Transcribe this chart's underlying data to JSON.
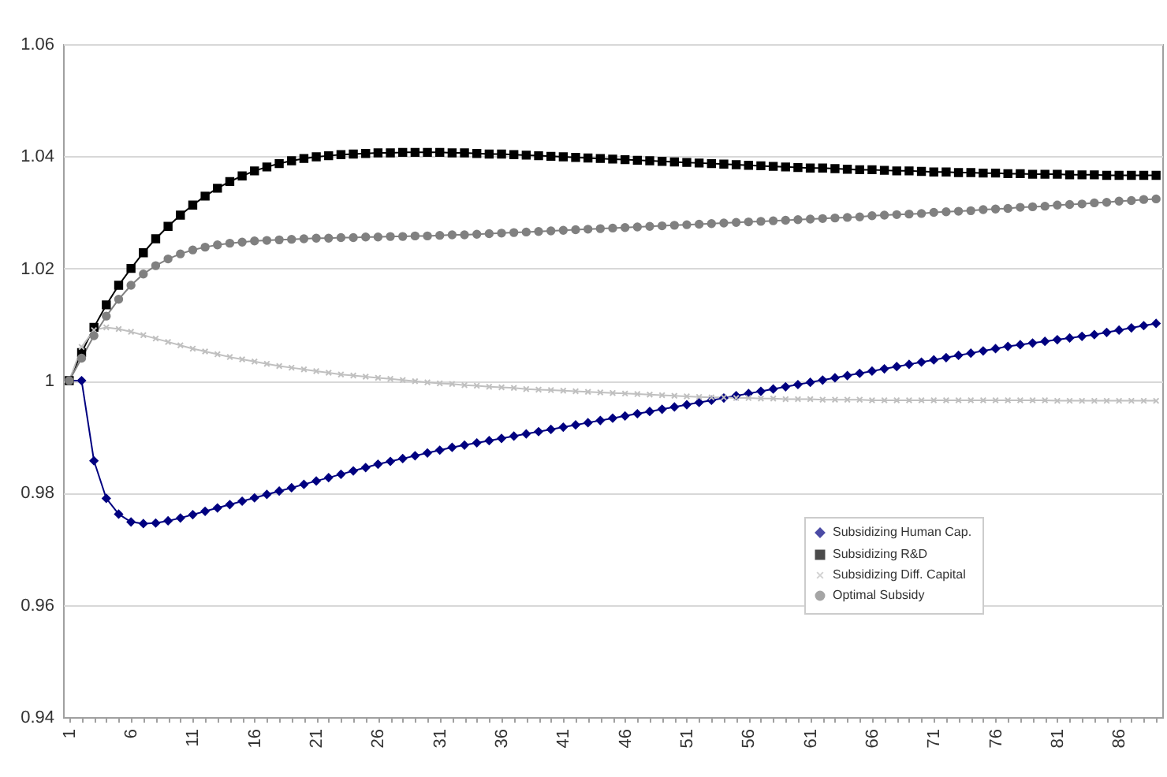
{
  "chart_data": {
    "type": "line",
    "categories": [
      "1",
      null,
      null,
      null,
      null,
      "6",
      null,
      null,
      null,
      null,
      "11",
      null,
      null,
      null,
      null,
      "16",
      null,
      null,
      null,
      null,
      "21",
      null,
      null,
      null,
      null,
      "26",
      null,
      null,
      null,
      null,
      "31",
      null,
      null,
      null,
      null,
      "36",
      null,
      null,
      null,
      null,
      "41",
      null,
      null,
      null,
      null,
      "46",
      null,
      null,
      null,
      null,
      "51",
      null,
      null,
      null,
      null,
      "56",
      null,
      null,
      null,
      null,
      "61",
      null,
      null,
      null,
      null,
      "66",
      null,
      null,
      null,
      null,
      "71",
      null,
      null,
      null,
      null,
      "76",
      null,
      null,
      null,
      null,
      "81",
      null,
      null,
      null,
      null,
      "86",
      null,
      null,
      null
    ],
    "series": [
      {
        "name": "Subsidizing Human Cap.",
        "color": "#000080",
        "marker": "diamond",
        "values": [
          1.0,
          1.0,
          0.9857,
          0.979,
          0.9762,
          0.9748,
          0.9745,
          0.9746,
          0.975,
          0.9755,
          0.9761,
          0.9767,
          0.9773,
          0.9779,
          0.9785,
          0.9791,
          0.9797,
          0.9803,
          0.9809,
          0.9815,
          0.9821,
          0.9827,
          0.9833,
          0.9839,
          0.9845,
          0.9851,
          0.9856,
          0.9861,
          0.9866,
          0.9871,
          0.9876,
          0.9881,
          0.9885,
          0.9889,
          0.9893,
          0.9897,
          0.9901,
          0.9905,
          0.9909,
          0.9913,
          0.9917,
          0.9921,
          0.9925,
          0.9929,
          0.9933,
          0.9937,
          0.9941,
          0.9945,
          0.9949,
          0.9953,
          0.9957,
          0.9961,
          0.9965,
          0.9969,
          0.9973,
          0.9977,
          0.9981,
          0.9985,
          0.9989,
          0.9993,
          0.9997,
          1.0001,
          1.0005,
          1.0009,
          1.0013,
          1.0017,
          1.0021,
          1.0025,
          1.0029,
          1.0033,
          1.0037,
          1.0041,
          1.0045,
          1.0049,
          1.0053,
          1.0057,
          1.0061,
          1.0064,
          1.0067,
          1.007,
          1.0073,
          1.0076,
          1.0079,
          1.0082,
          1.0086,
          1.009,
          1.0094,
          1.0098,
          1.0102
        ]
      },
      {
        "name": "Subsidizing R&D",
        "color": "#000000",
        "marker": "square",
        "values": [
          1.0,
          1.005,
          1.0095,
          1.0135,
          1.017,
          1.02,
          1.0228,
          1.0253,
          1.0275,
          1.0295,
          1.0313,
          1.0329,
          1.0343,
          1.0355,
          1.0365,
          1.0374,
          1.0381,
          1.0387,
          1.0392,
          1.0396,
          1.0399,
          1.0401,
          1.0403,
          1.0404,
          1.0405,
          1.0406,
          1.0406,
          1.0407,
          1.0407,
          1.0407,
          1.0407,
          1.0406,
          1.0406,
          1.0405,
          1.0404,
          1.0404,
          1.0403,
          1.0402,
          1.0401,
          1.04,
          1.0399,
          1.0398,
          1.0397,
          1.0396,
          1.0395,
          1.0394,
          1.0393,
          1.0392,
          1.0391,
          1.039,
          1.0389,
          1.0388,
          1.0387,
          1.0386,
          1.0385,
          1.0384,
          1.0383,
          1.0382,
          1.0381,
          1.038,
          1.0379,
          1.0379,
          1.0378,
          1.0377,
          1.0376,
          1.0376,
          1.0375,
          1.0374,
          1.0374,
          1.0373,
          1.0372,
          1.0372,
          1.0371,
          1.0371,
          1.037,
          1.037,
          1.0369,
          1.0369,
          1.0368,
          1.0368,
          1.0368,
          1.0367,
          1.0367,
          1.0367,
          1.0366,
          1.0366,
          1.0366,
          1.0366,
          1.0366
        ]
      },
      {
        "name": "Subsidizing Diff. Capital",
        "color": "#c0c0c0",
        "marker": "cross",
        "values": [
          1.0,
          1.006,
          1.009,
          1.0095,
          1.0092,
          1.0087,
          1.0081,
          1.0075,
          1.0069,
          1.0063,
          1.0057,
          1.0052,
          1.0047,
          1.0042,
          1.0038,
          1.0034,
          1.003,
          1.0026,
          1.0023,
          1.002,
          1.0017,
          1.0014,
          1.0011,
          1.0009,
          1.0007,
          1.0005,
          1.0003,
          1.0001,
          0.9999,
          0.9997,
          0.9995,
          0.9994,
          0.9992,
          0.9991,
          0.9989,
          0.9988,
          0.9987,
          0.9985,
          0.9984,
          0.9983,
          0.9982,
          0.9981,
          0.998,
          0.9979,
          0.9978,
          0.9977,
          0.9976,
          0.9975,
          0.9974,
          0.9973,
          0.9972,
          0.9971,
          0.997,
          0.997,
          0.9969,
          0.9969,
          0.9968,
          0.9968,
          0.9967,
          0.9967,
          0.9967,
          0.9966,
          0.9966,
          0.9966,
          0.9966,
          0.9965,
          0.9965,
          0.9965,
          0.9965,
          0.9965,
          0.9965,
          0.9965,
          0.9965,
          0.9965,
          0.9965,
          0.9965,
          0.9965,
          0.9965,
          0.9965,
          0.9965,
          0.9964,
          0.9964,
          0.9964,
          0.9964,
          0.9964,
          0.9964,
          0.9964,
          0.9964,
          0.9964
        ]
      },
      {
        "name": "Optimal Subsidy",
        "color": "#808080",
        "marker": "circle",
        "values": [
          1.0,
          1.004,
          1.008,
          1.0115,
          1.0145,
          1.017,
          1.019,
          1.0205,
          1.0217,
          1.0226,
          1.0233,
          1.0238,
          1.0242,
          1.0245,
          1.0247,
          1.0249,
          1.025,
          1.0251,
          1.0252,
          1.0253,
          1.0254,
          1.0254,
          1.0255,
          1.0255,
          1.0256,
          1.0256,
          1.0257,
          1.0257,
          1.0258,
          1.0258,
          1.0259,
          1.026,
          1.026,
          1.0261,
          1.0262,
          1.0263,
          1.0264,
          1.0265,
          1.0266,
          1.0267,
          1.0268,
          1.0269,
          1.027,
          1.0271,
          1.0272,
          1.0273,
          1.0274,
          1.0275,
          1.0276,
          1.0277,
          1.0278,
          1.0279,
          1.028,
          1.0281,
          1.0282,
          1.0283,
          1.0284,
          1.0285,
          1.0286,
          1.0287,
          1.0288,
          1.0289,
          1.029,
          1.0291,
          1.0292,
          1.0294,
          1.0295,
          1.0296,
          1.0297,
          1.0298,
          1.03,
          1.0301,
          1.0302,
          1.0303,
          1.0305,
          1.0306,
          1.0307,
          1.0309,
          1.031,
          1.0311,
          1.0313,
          1.0314,
          1.0315,
          1.0317,
          1.0318,
          1.032,
          1.0321,
          1.0323,
          1.0324
        ]
      }
    ],
    "ylim": [
      0.94,
      1.06
    ],
    "yticks": [
      0.94,
      0.96,
      0.98,
      {
        "value": 1,
        "label": "1"
      },
      1.02,
      1.04,
      1.06
    ],
    "grid": "y",
    "legend": "bottom right",
    "line_style": "solid"
  }
}
